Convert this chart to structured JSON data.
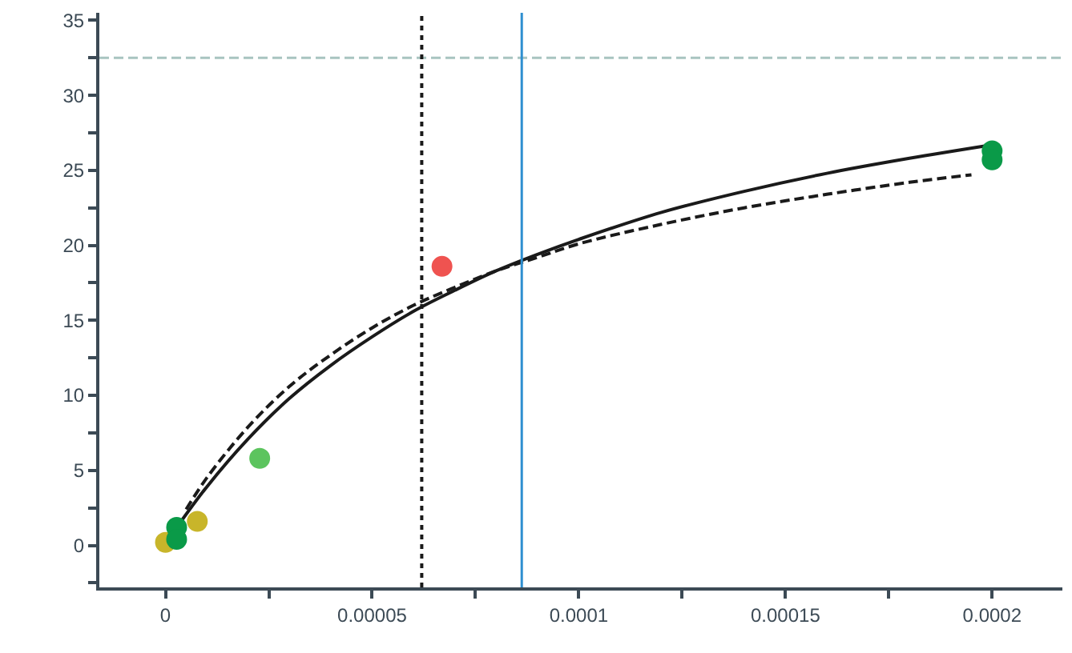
{
  "chart_data": {
    "type": "scatter",
    "xlim": [
      -1.6e-05,
      0.000217
    ],
    "ylim": [
      -2.8,
      35.5
    ],
    "xticks": [
      0,
      {
        "value": 2.5e-05,
        "label": null
      },
      {
        "value": 5e-05,
        "label": "0.00005"
      },
      {
        "value": 7.5e-05,
        "label": null
      },
      {
        "value": 0.0001,
        "label": "0.0001"
      },
      {
        "value": 0.000125,
        "label": null
      },
      {
        "value": 0.00015,
        "label": "0.00015"
      },
      {
        "value": 0.000175,
        "label": null
      },
      {
        "value": 0.0002,
        "label": "0.0002"
      }
    ],
    "yticks": [
      {
        "value": -2.5,
        "label": null
      },
      0,
      {
        "value": 2.5,
        "label": null
      },
      5,
      {
        "value": 7.5,
        "label": null
      },
      10,
      {
        "value": 12.5,
        "label": null
      },
      15,
      {
        "value": 17.5,
        "label": null
      },
      20,
      {
        "value": 22.5,
        "label": null
      },
      25,
      {
        "value": 27.5,
        "label": null
      },
      30,
      {
        "value": 32.5,
        "label": null
      },
      35
    ],
    "series": [
      {
        "marker": "circle",
        "x": [
          0.0,
          2.7e-06,
          2.7e-06,
          7.7e-06,
          2.28e-05,
          6.69e-05,
          0.0002,
          0.0002
        ],
        "values": [
          0.2,
          1.2,
          0.4,
          1.6,
          5.8,
          18.6,
          26.3,
          25.7
        ],
        "colors": [
          "#c8b52a",
          "#0a9a48",
          "#0a9a48",
          "#c8b52a",
          "#5cc45e",
          "#ef5350",
          "#0a9a48",
          "#0a9a48"
        ]
      },
      {
        "type": "line",
        "marker": "none",
        "line_style": "solid",
        "color": "#1a1a1a",
        "x": [
          3e-06,
          1e-05,
          2e-05,
          3e-05,
          4e-05,
          5e-05,
          6e-05,
          7e-05,
          8e-05,
          9e-05,
          0.0001,
          0.00012,
          0.00014,
          0.00016,
          0.00018,
          0.0002
        ],
        "values": [
          1.3,
          3.9,
          7.1,
          9.8,
          12.0,
          13.9,
          15.6,
          17.0,
          18.3,
          19.4,
          20.4,
          22.2,
          23.6,
          24.8,
          25.8,
          26.7
        ]
      },
      {
        "type": "line",
        "marker": "none",
        "line_style": "dashed",
        "color": "#1a1a1a",
        "x": [
          5e-06,
          1e-05,
          2e-05,
          3e-05,
          4e-05,
          5e-05,
          6e-05,
          7e-05,
          8e-05,
          9e-05,
          0.0001,
          0.00012,
          0.00014,
          0.00016,
          0.00018,
          0.000195
        ],
        "values": [
          2.4,
          4.5,
          7.9,
          10.6,
          12.7,
          14.5,
          16.0,
          17.2,
          18.3,
          19.2,
          20.1,
          21.4,
          22.5,
          23.4,
          24.2,
          24.7
        ]
      }
    ],
    "ref_lines": [
      {
        "axis": "y",
        "value": 32.5,
        "color": "#a8c4c0",
        "line_style": "dashed"
      },
      {
        "axis": "x",
        "value": 6.2e-05,
        "color": "#1a1a1a",
        "line_style": "dotted"
      },
      {
        "axis": "x",
        "value": 8.62e-05,
        "color": "#2e8fd0",
        "line_style": "solid"
      }
    ]
  }
}
